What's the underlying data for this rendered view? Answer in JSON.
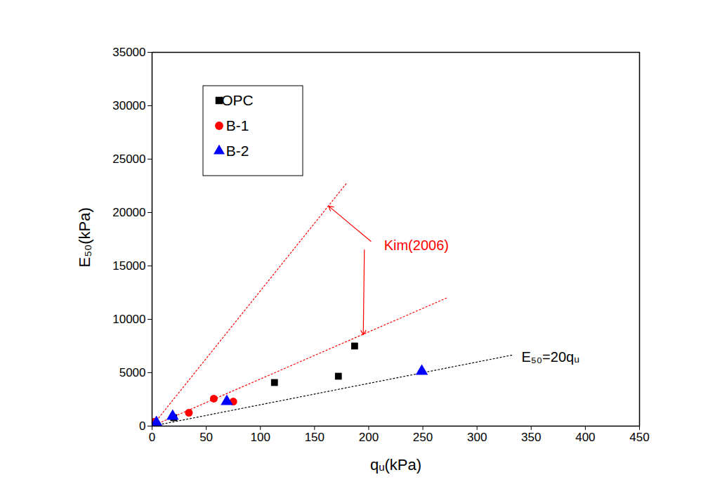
{
  "chart_data": {
    "type": "scatter",
    "x_label": "qᵤ(kPa)",
    "y_label": "E₅₀(kPa)",
    "xlim": [
      0,
      450
    ],
    "xticks": [
      0,
      50,
      100,
      150,
      200,
      250,
      300,
      350,
      400,
      450
    ],
    "ylim": [
      0,
      35000
    ],
    "yticks": [
      0,
      5000,
      10000,
      15000,
      20000,
      25000,
      30000,
      35000
    ],
    "legend": "upper left",
    "series": [
      {
        "name": "OPC",
        "color": "#000000",
        "marker": "square",
        "x": [
          20,
          113,
          172,
          187
        ],
        "values": [
          790,
          4080,
          4670,
          7500
        ]
      },
      {
        "name": "B-1",
        "color": "#ff0000",
        "marker": "circle",
        "x": [
          2,
          34,
          57,
          75
        ],
        "values": [
          400,
          1250,
          2570,
          2300
        ]
      },
      {
        "name": "B-2",
        "color": "#0000ff",
        "marker": "triangle",
        "x": [
          4,
          19,
          69,
          249
        ],
        "values": [
          330,
          920,
          2300,
          5130
        ]
      }
    ],
    "reference_lines": [
      {
        "color": "#ff0000",
        "line_style": "dotted",
        "x": [
          0,
          180
        ],
        "values": [
          0,
          22800
        ]
      },
      {
        "color": "#ff0000",
        "line_style": "dotted",
        "x": [
          0,
          272
        ],
        "values": [
          0,
          12000
        ]
      },
      {
        "color": "#000000",
        "line_style": "dotted",
        "x": [
          0,
          332
        ],
        "values": [
          0,
          6640
        ]
      }
    ],
    "annotations": [
      {
        "text": "Kim(2006)",
        "color": "#ff0000",
        "x": 244,
        "y": 16900,
        "arrows": [
          {
            "x1": 202,
            "y1": 17300,
            "x2": 163,
            "y2": 20600
          },
          {
            "x1": 196,
            "y1": 16500,
            "x2": 195,
            "y2": 8550
          }
        ]
      },
      {
        "text": "E₅₀=20qᵤ",
        "color": "#000000",
        "x": 341,
        "y": 6450
      }
    ]
  }
}
